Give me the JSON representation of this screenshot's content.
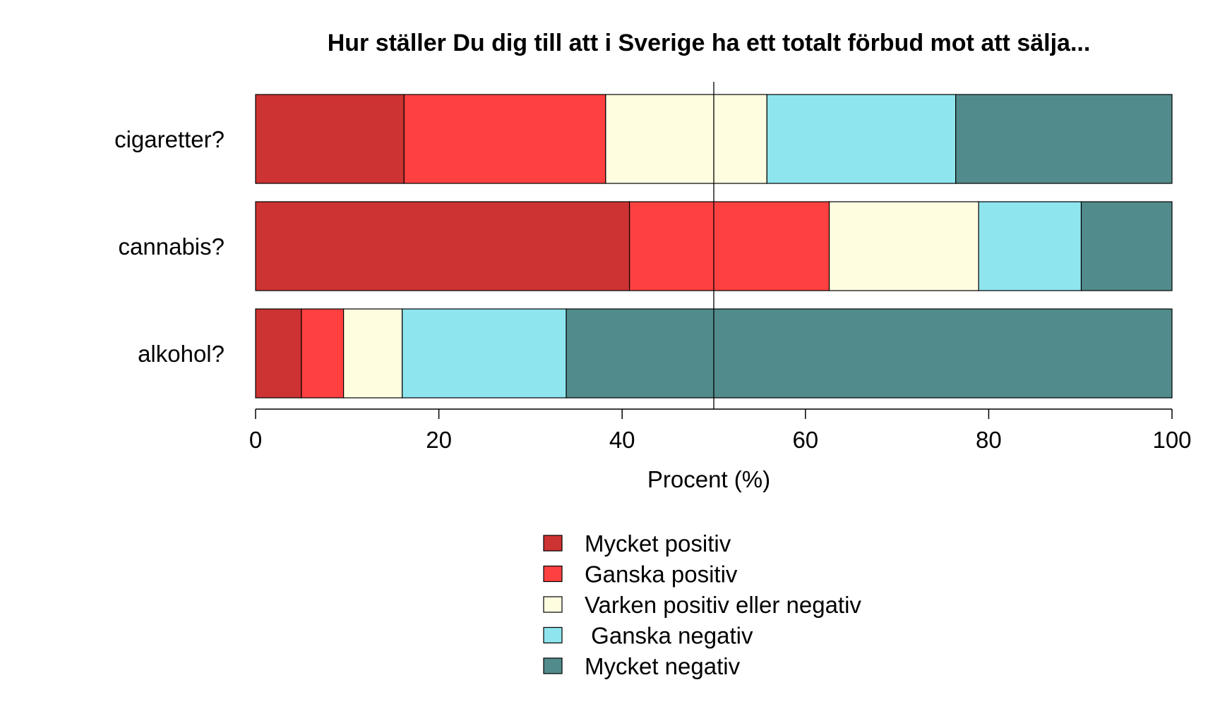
{
  "colors": {
    "mycket_positiv": "#CD3333",
    "ganska_positiv": "#FF4040",
    "varken": "#FFFDE0",
    "ganska_negativ": "#8EE5EE",
    "mycket_negativ": "#528B8B"
  },
  "chart_data": {
    "type": "bar",
    "orientation": "horizontal",
    "stacked": true,
    "title": "Hur ställer Du dig till att i Sverige ha ett totalt förbud mot att sälja...",
    "xlabel": "Procent (%)",
    "ylabel": "",
    "xlim": [
      0,
      100
    ],
    "xticks": [
      0,
      20,
      40,
      60,
      80,
      100
    ],
    "reference_line_x": 50,
    "grid": false,
    "legend_position": "bottom",
    "categories": [
      "cigaretter?",
      "cannabis?",
      "alkohol?"
    ],
    "series": [
      {
        "name": "Mycket positiv",
        "color": "#CD3333",
        "values": [
          16.2,
          40.8,
          5.0
        ]
      },
      {
        "name": "Ganska positiv",
        "color": "#FF4040",
        "values": [
          22.0,
          21.8,
          4.6
        ]
      },
      {
        "name": "Varken positiv eller negativ",
        "color": "#FFFDE0",
        "values": [
          17.6,
          16.3,
          6.4
        ]
      },
      {
        "name": " Ganska negativ",
        "color": "#8EE5EE",
        "values": [
          20.6,
          11.2,
          17.9
        ]
      },
      {
        "name": "Mycket negativ",
        "color": "#528B8B",
        "values": [
          23.6,
          9.9,
          66.1
        ]
      }
    ]
  }
}
